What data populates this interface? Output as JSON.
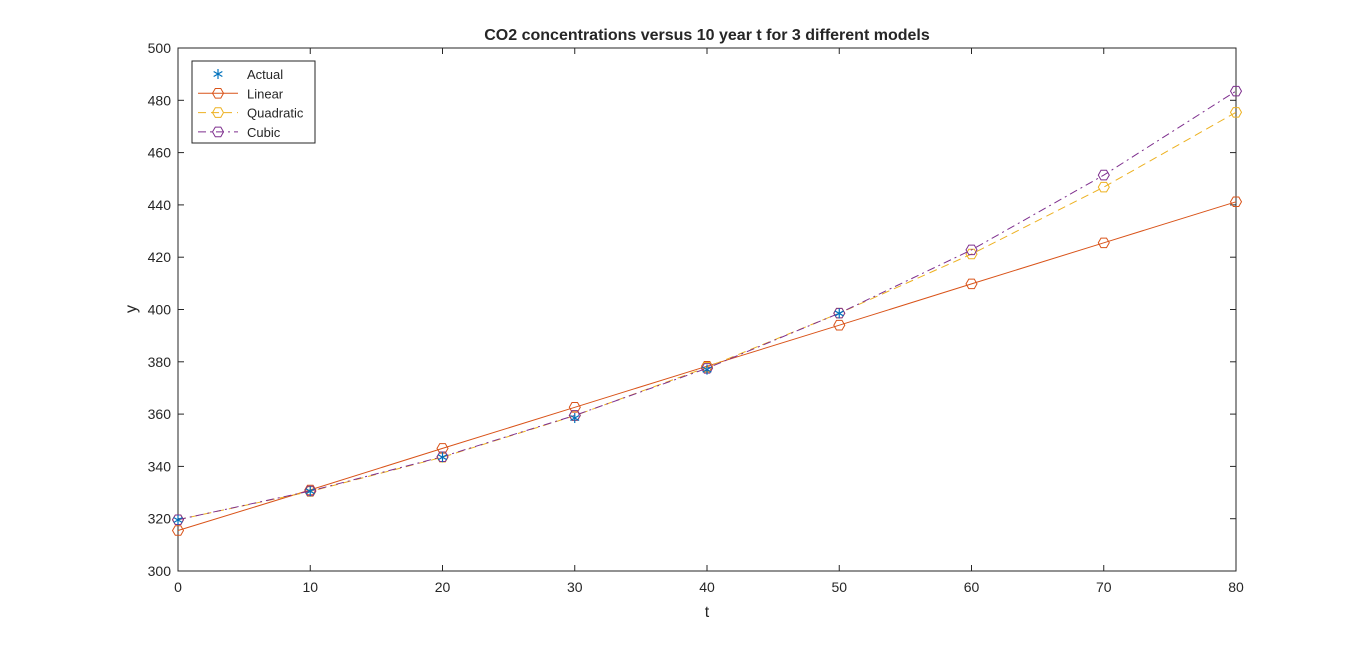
{
  "chart_data": {
    "type": "line",
    "title": "CO2 concentrations versus 10 year t for 3 different models",
    "xlabel": "t",
    "ylabel": "y",
    "xlim": [
      0,
      80
    ],
    "ylim": [
      300,
      500
    ],
    "xticks": [
      0,
      10,
      20,
      30,
      40,
      50,
      60,
      70,
      80
    ],
    "yticks": [
      300,
      320,
      340,
      360,
      380,
      400,
      420,
      440,
      460,
      480,
      500
    ],
    "grid": false,
    "legend_position": "top-left",
    "series": [
      {
        "name": "Actual",
        "color": "#0072BD",
        "line": "none",
        "marker": "asterisk",
        "x": [
          0,
          10,
          20,
          30,
          40,
          50
        ],
        "y": [
          319.5,
          330.5,
          343.5,
          358.5,
          377,
          398.5
        ]
      },
      {
        "name": "Linear",
        "color": "#D95319",
        "line": "solid",
        "marker": "hexagon",
        "x": [
          0,
          10,
          20,
          30,
          40,
          50,
          60,
          70,
          80
        ],
        "y": [
          315.5,
          331,
          346.9,
          362.6,
          378.3,
          394,
          409.8,
          425.5,
          441.2
        ]
      },
      {
        "name": "Quadratic",
        "color": "#EDB120",
        "line": "dashed",
        "marker": "hexagon",
        "x": [
          0,
          10,
          20,
          30,
          40,
          50,
          60,
          70,
          80
        ],
        "y": [
          319.6,
          330.4,
          343.5,
          359.4,
          377.9,
          398.6,
          421.2,
          446.8,
          475.4
        ]
      },
      {
        "name": "Cubic",
        "color": "#7E2F8E",
        "line": "dashdot",
        "marker": "hexagon",
        "x": [
          0,
          10,
          20,
          30,
          40,
          50,
          60,
          70,
          80
        ],
        "y": [
          319.6,
          330.6,
          343.7,
          359.5,
          377.5,
          398.6,
          422.8,
          451.4,
          483.5
        ]
      }
    ]
  }
}
